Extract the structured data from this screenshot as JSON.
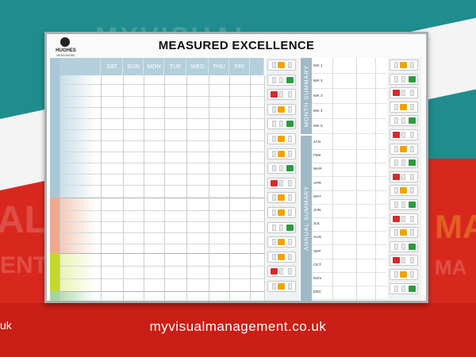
{
  "board": {
    "title": "MEASURED EXCELLENCE",
    "logo_name": "HUGHES",
    "logo_sub": "MEDIVISIONS",
    "days": [
      "SAT",
      "SUN",
      "MON",
      "TUE",
      "WED",
      "THU",
      "FRI"
    ],
    "month_summary_label": "MONTH SUMMARY",
    "annual_summary_label": "ANNUAL SUMMARY",
    "weeks": [
      "WK 1",
      "WK 2",
      "WK 3",
      "WK 4",
      "WK 5"
    ],
    "months": [
      "JAN",
      "FEB",
      "MAR",
      "APR",
      "MAY",
      "JUN",
      "JUL",
      "AUG",
      "SEP",
      "OCT",
      "NOV",
      "DEC"
    ]
  },
  "status_left": [
    "amber",
    "green",
    "red",
    "amber",
    "green",
    "amber",
    "amber",
    "green",
    "red",
    "amber",
    "amber",
    "green",
    "amber",
    "amber",
    "red",
    "amber"
  ],
  "status_right": [
    "amber",
    "green",
    "red",
    "amber",
    "green",
    "red",
    "amber",
    "green",
    "red",
    "amber",
    "green",
    "red",
    "amber",
    "green",
    "red",
    "amber",
    "green"
  ],
  "wall": {
    "url": "myvisualmanagement.co.uk",
    "uk_fragment": "uk",
    "ghost_top": "MYVISUAL",
    "ghost_left": "AL",
    "ghost_left2": "ENT",
    "ghost_right": "MA",
    "ghost_right2": "MA"
  },
  "colors": {
    "amber": "#f0a400",
    "green": "#2c9b3c",
    "red": "#d62a2a",
    "row_blue": "#c9dde7",
    "row_peach": "#f2c9b6",
    "row_lime": "#c8e14a",
    "row_green": "#b7dcae"
  }
}
